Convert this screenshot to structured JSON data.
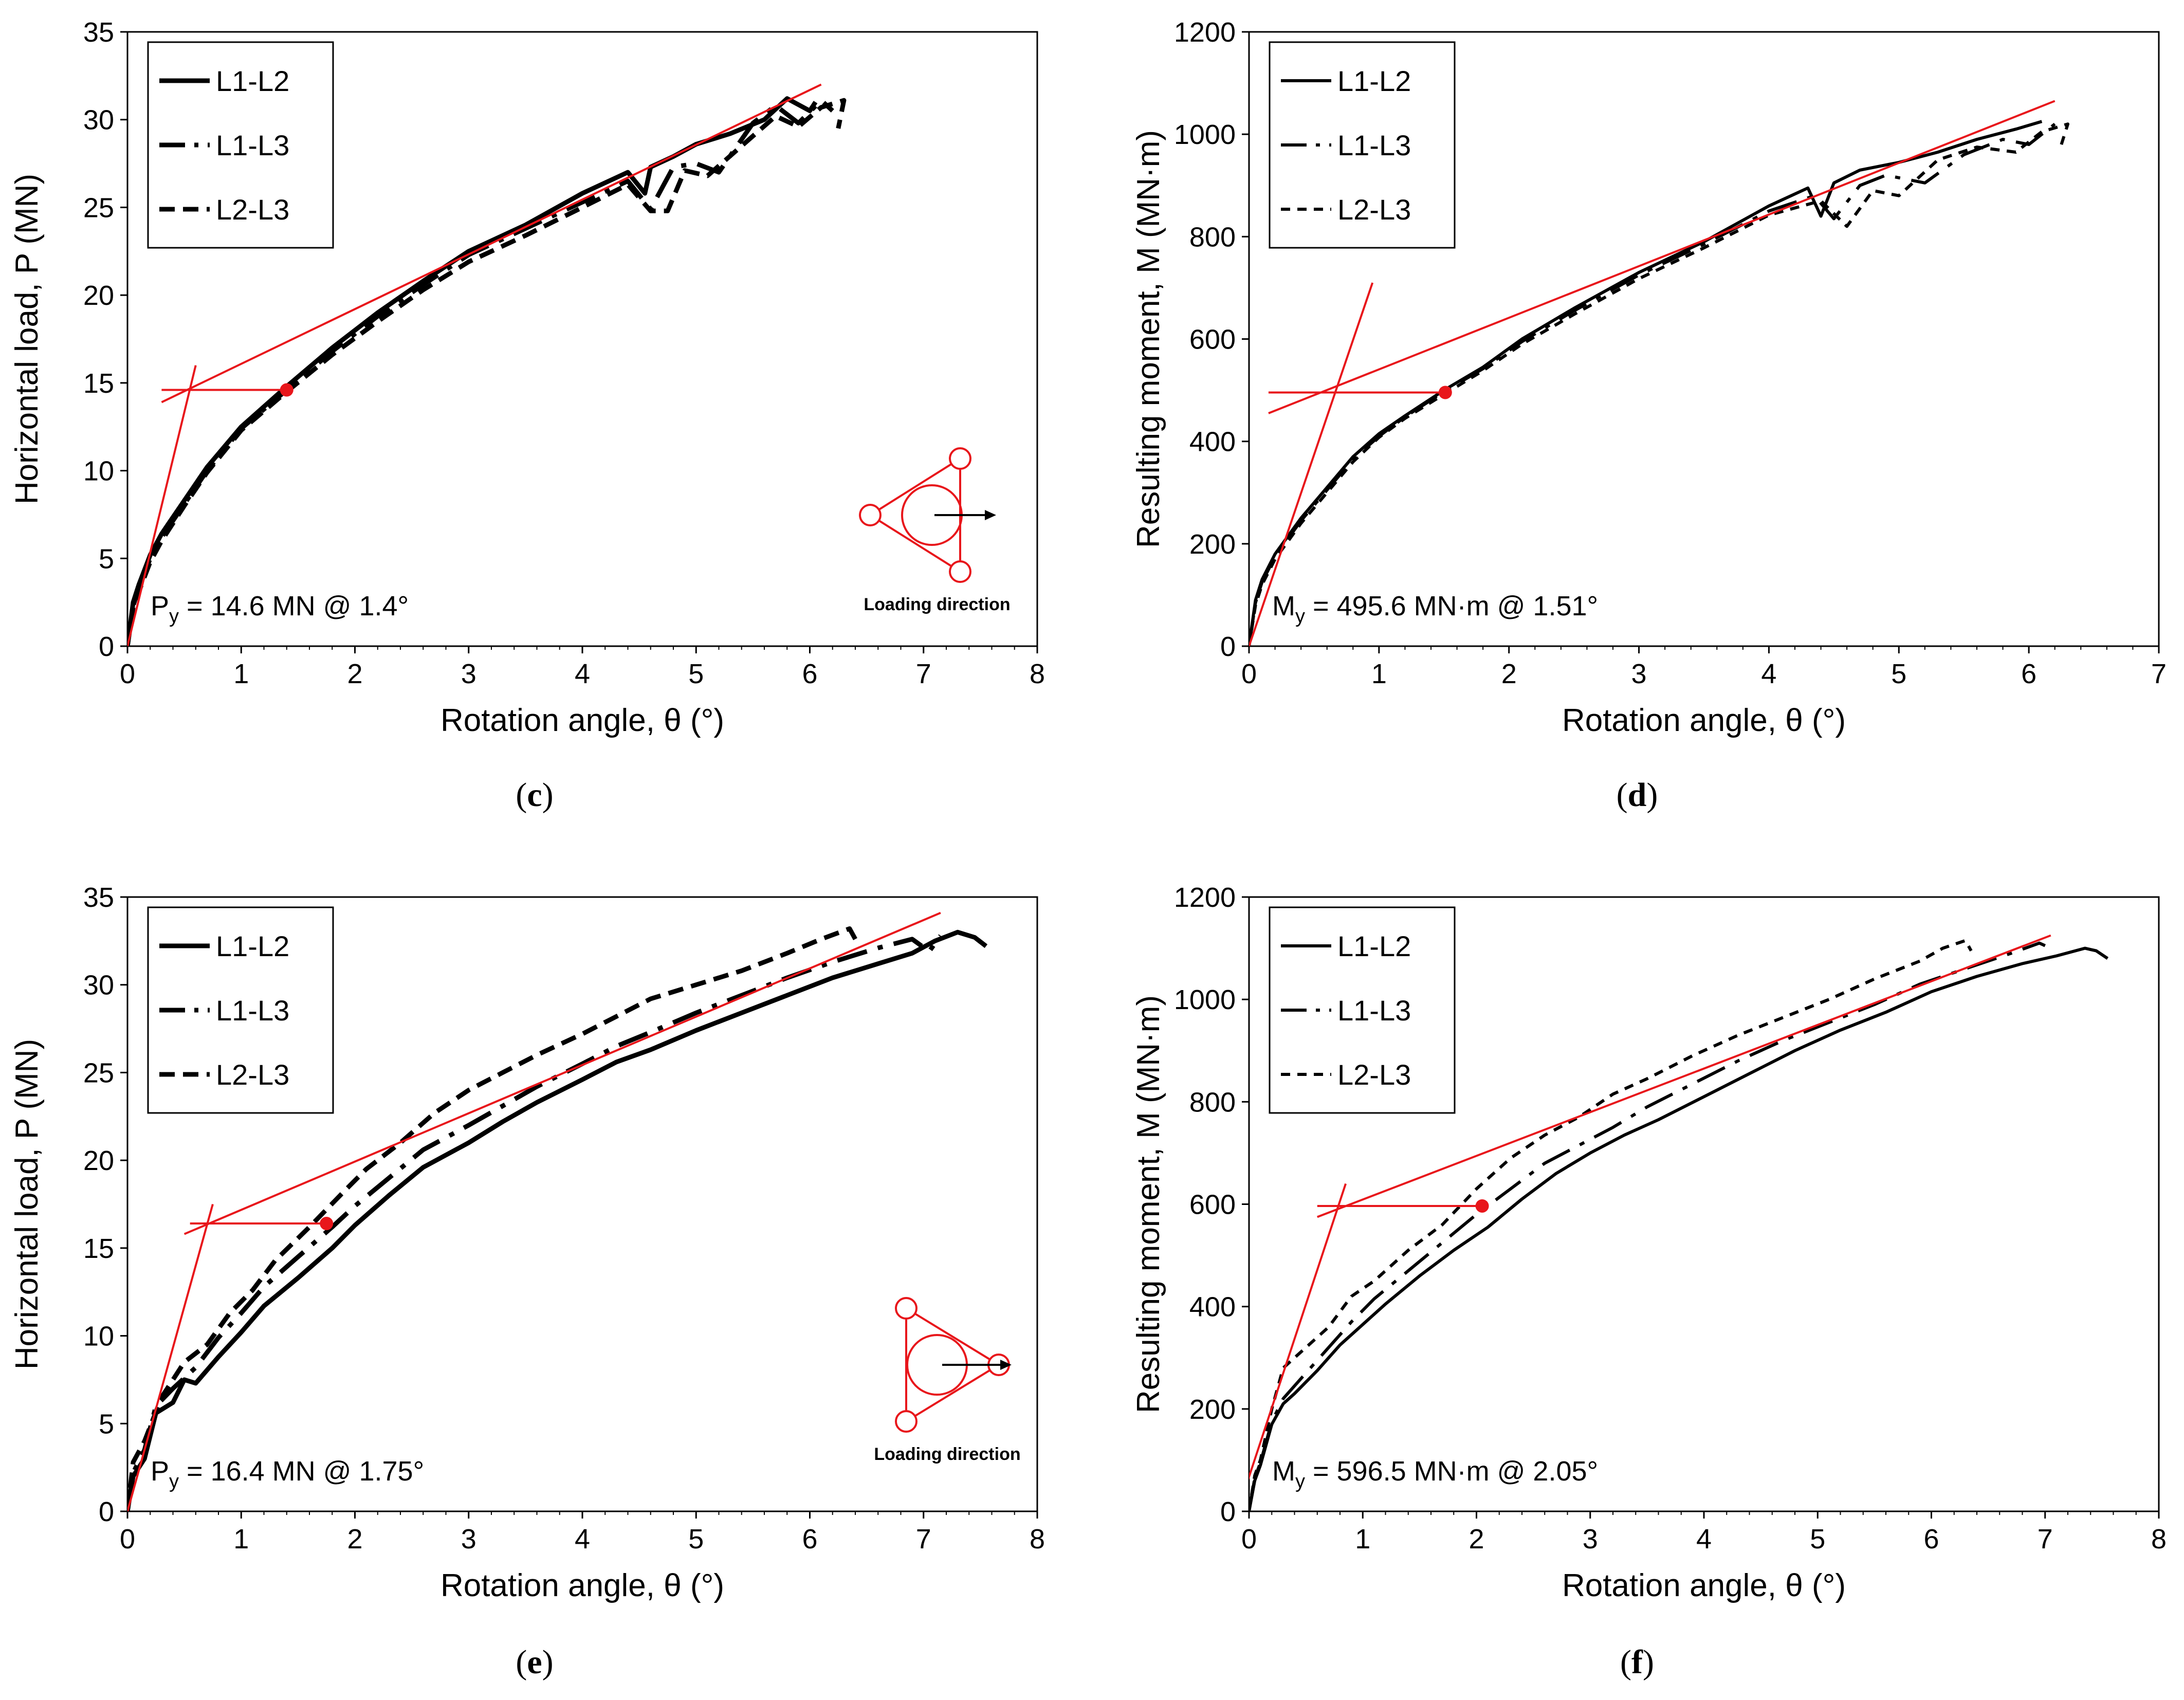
{
  "colors": {
    "series": "#000000",
    "fit": "#e8161b",
    "axis": "#000000"
  },
  "chart_data": [
    {
      "id": "c",
      "type": "line",
      "caption": "c",
      "xlabel": "Rotation angle, θ (°)",
      "ylabel": "Horizontal load, P (MN)",
      "xlim": [
        0,
        8
      ],
      "ylim": [
        0,
        35
      ],
      "xticks": [
        0,
        1,
        2,
        3,
        4,
        5,
        6,
        7,
        8
      ],
      "yticks": [
        0,
        5,
        10,
        15,
        20,
        25,
        30,
        35
      ],
      "legend": {
        "position": "top-left",
        "style": "bold"
      },
      "series": [
        {
          "name": "L1-L2",
          "dash": "solid",
          "x": [
            0,
            0.05,
            0.1,
            0.2,
            0.3,
            0.5,
            0.7,
            1.0,
            1.4,
            1.8,
            2.2,
            2.6,
            3.0,
            3.5,
            4.0,
            4.4,
            4.55,
            4.6,
            4.8,
            5.0,
            5.3,
            5.6,
            5.8,
            6.0,
            6.05
          ],
          "y": [
            0,
            2.5,
            3.5,
            5.2,
            6.4,
            8.3,
            10.2,
            12.5,
            14.8,
            17.0,
            19.0,
            20.8,
            22.5,
            24.0,
            25.8,
            27.0,
            25.8,
            27.3,
            27.9,
            28.6,
            29.2,
            30.0,
            31.2,
            30.5,
            31.0
          ]
        },
        {
          "name": "L1-L3",
          "dash": "dashdot",
          "x": [
            0,
            0.05,
            0.1,
            0.2,
            0.3,
            0.5,
            0.7,
            1.0,
            1.4,
            1.8,
            2.2,
            2.6,
            3.0,
            3.5,
            4.0,
            4.4,
            4.6,
            4.8,
            5.0,
            5.2,
            5.5,
            5.7,
            5.9,
            6.1,
            6.2
          ],
          "y": [
            0,
            2.3,
            3.3,
            5.0,
            6.2,
            8.1,
            10.0,
            12.4,
            14.6,
            16.8,
            18.8,
            20.6,
            22.3,
            23.8,
            25.3,
            26.5,
            24.9,
            27.3,
            27.5,
            27.0,
            29.8,
            30.8,
            29.8,
            31.1,
            30.5
          ]
        },
        {
          "name": "L2-L3",
          "dash": "dashed",
          "x": [
            0,
            0.05,
            0.1,
            0.2,
            0.3,
            0.5,
            0.7,
            1.0,
            1.4,
            1.8,
            2.2,
            2.6,
            3.0,
            3.5,
            4.0,
            4.4,
            4.6,
            4.75,
            4.9,
            5.1,
            5.4,
            5.7,
            5.9,
            6.1,
            6.3,
            6.25
          ],
          "y": [
            0,
            2.2,
            3.1,
            4.8,
            6.0,
            8.0,
            9.9,
            12.3,
            14.5,
            16.6,
            18.5,
            20.3,
            21.9,
            23.4,
            25.0,
            26.3,
            24.8,
            24.8,
            27.1,
            26.8,
            28.5,
            30.2,
            29.6,
            30.7,
            31.1,
            29.5
          ]
        }
      ],
      "fit_lines": [
        {
          "x": [
            0,
            0.6
          ],
          "y": [
            0,
            16.0
          ]
        },
        {
          "x": [
            0.3,
            6.1
          ],
          "y": [
            13.9,
            32.0
          ]
        },
        {
          "x": [
            0.3,
            1.4
          ],
          "y": [
            14.6,
            14.6
          ]
        }
      ],
      "yield_point": {
        "x": 1.4,
        "y": 14.6
      },
      "annotation": {
        "var": "P",
        "sub": "y",
        "text": " = 14.6 MN @ 1.4°"
      },
      "inset": {
        "label": "Loading direction",
        "orientation": "vertex-up"
      }
    },
    {
      "id": "d",
      "type": "line",
      "caption": "d",
      "xlabel": "Rotation angle, θ (°)",
      "ylabel": "Resulting moment, M (MN·m)",
      "xlim": [
        0,
        7
      ],
      "ylim": [
        0,
        1200
      ],
      "xticks": [
        0,
        1,
        2,
        3,
        4,
        5,
        6,
        7
      ],
      "yticks": [
        0,
        200,
        400,
        600,
        800,
        1000,
        1200
      ],
      "legend": {
        "position": "top-left",
        "style": "thin"
      },
      "series": [
        {
          "name": "L1-L2",
          "dash": "solid",
          "x": [
            0,
            0.05,
            0.1,
            0.2,
            0.4,
            0.6,
            0.8,
            1.0,
            1.2,
            1.5,
            1.8,
            2.1,
            2.5,
            3.0,
            3.5,
            4.0,
            4.3,
            4.4,
            4.5,
            4.7,
            5.0,
            5.3,
            5.6,
            5.9,
            6.1
          ],
          "y": [
            0,
            90,
            130,
            180,
            250,
            310,
            370,
            415,
            450,
            500,
            545,
            600,
            660,
            730,
            790,
            860,
            895,
            840,
            905,
            930,
            945,
            965,
            990,
            1010,
            1025
          ]
        },
        {
          "name": "L1-L3",
          "dash": "dashdot",
          "x": [
            0,
            0.05,
            0.1,
            0.2,
            0.4,
            0.6,
            0.8,
            1.0,
            1.2,
            1.5,
            1.8,
            2.1,
            2.5,
            3.0,
            3.5,
            4.0,
            4.35,
            4.5,
            4.7,
            4.9,
            5.2,
            5.5,
            5.8,
            6.0,
            6.2
          ],
          "y": [
            0,
            85,
            125,
            175,
            245,
            305,
            365,
            410,
            448,
            497,
            542,
            595,
            655,
            725,
            785,
            850,
            880,
            835,
            900,
            920,
            905,
            960,
            990,
            980,
            1020
          ]
        },
        {
          "name": "L2-L3",
          "dash": "dashed",
          "x": [
            0,
            0.05,
            0.1,
            0.2,
            0.4,
            0.6,
            0.8,
            1.0,
            1.2,
            1.5,
            1.8,
            2.1,
            2.5,
            3.0,
            3.5,
            4.0,
            4.4,
            4.6,
            4.8,
            5.0,
            5.3,
            5.6,
            5.9,
            6.1,
            6.3,
            6.25
          ],
          "y": [
            0,
            80,
            120,
            170,
            240,
            300,
            360,
            408,
            445,
            492,
            538,
            590,
            648,
            718,
            778,
            842,
            870,
            820,
            890,
            880,
            950,
            975,
            965,
            1005,
            1020,
            980
          ]
        }
      ],
      "fit_lines": [
        {
          "x": [
            0,
            0.95
          ],
          "y": [
            0,
            710
          ]
        },
        {
          "x": [
            0.15,
            6.2
          ],
          "y": [
            455,
            1065
          ]
        },
        {
          "x": [
            0.15,
            1.51
          ],
          "y": [
            495.6,
            495.6
          ]
        }
      ],
      "yield_point": {
        "x": 1.51,
        "y": 495.6
      },
      "annotation": {
        "var": "M",
        "sub": "y",
        "text": " = 495.6 MN·m @ 1.51°"
      }
    },
    {
      "id": "e",
      "type": "line",
      "caption": "e",
      "xlabel": "Rotation angle, θ (°)",
      "ylabel": "Horizontal load, P (MN)",
      "xlim": [
        0,
        8
      ],
      "ylim": [
        0,
        35
      ],
      "xticks": [
        0,
        1,
        2,
        3,
        4,
        5,
        6,
        7,
        8
      ],
      "yticks": [
        0,
        5,
        10,
        15,
        20,
        25,
        30,
        35
      ],
      "legend": {
        "position": "top-left",
        "style": "bold"
      },
      "series": [
        {
          "name": "L1-L2",
          "dash": "solid",
          "x": [
            0,
            0.05,
            0.15,
            0.25,
            0.4,
            0.5,
            0.6,
            0.8,
            1.0,
            1.2,
            1.5,
            1.8,
            2.0,
            2.3,
            2.6,
            3.0,
            3.3,
            3.6,
            4.0,
            4.3,
            4.6,
            5.0,
            5.4,
            5.8,
            6.2,
            6.6,
            6.9,
            7.1,
            7.3,
            7.45,
            7.55
          ],
          "y": [
            0,
            2.0,
            3.0,
            5.6,
            6.2,
            7.5,
            7.3,
            8.8,
            10.2,
            11.7,
            13.3,
            15.0,
            16.3,
            18.0,
            19.6,
            21.0,
            22.2,
            23.3,
            24.6,
            25.6,
            26.3,
            27.4,
            28.4,
            29.4,
            30.4,
            31.2,
            31.8,
            32.5,
            33.0,
            32.7,
            32.2
          ]
        },
        {
          "name": "L1-L3",
          "dash": "dashdot",
          "x": [
            0,
            0.05,
            0.15,
            0.25,
            0.4,
            0.6,
            0.8,
            1.0,
            1.2,
            1.5,
            1.8,
            2.0,
            2.3,
            2.6,
            3.0,
            3.3,
            3.6,
            4.0,
            4.3,
            4.6,
            5.0,
            5.4,
            5.8,
            6.2,
            6.6,
            6.9,
            7.05,
            7.15
          ],
          "y": [
            0,
            2.2,
            3.5,
            6.0,
            7.0,
            8.2,
            9.9,
            11.3,
            12.8,
            14.5,
            16.2,
            17.4,
            19.0,
            20.6,
            22.0,
            23.1,
            24.2,
            25.5,
            26.5,
            27.3,
            28.4,
            29.4,
            30.4,
            31.3,
            32.1,
            32.6,
            31.9,
            32.8
          ]
        },
        {
          "name": "L2-L3",
          "dash": "dashed",
          "x": [
            0,
            0.05,
            0.15,
            0.3,
            0.5,
            0.7,
            0.9,
            1.1,
            1.3,
            1.6,
            1.9,
            2.1,
            2.4,
            2.7,
            3.0,
            3.3,
            3.6,
            4.0,
            4.3,
            4.6,
            5.0,
            5.4,
            5.8,
            6.1,
            6.35,
            6.4
          ],
          "y": [
            0,
            2.8,
            4.0,
            6.5,
            8.5,
            9.5,
            11.3,
            12.6,
            14.3,
            16.2,
            18.2,
            19.5,
            21.0,
            22.7,
            24.0,
            25.0,
            26.0,
            27.2,
            28.2,
            29.2,
            30.0,
            30.8,
            31.8,
            32.6,
            33.2,
            32.6
          ]
        }
      ],
      "fit_lines": [
        {
          "x": [
            0,
            0.75
          ],
          "y": [
            0,
            17.5
          ]
        },
        {
          "x": [
            0.5,
            7.15
          ],
          "y": [
            15.8,
            34.1
          ]
        },
        {
          "x": [
            0.55,
            1.75
          ],
          "y": [
            16.4,
            16.4
          ]
        }
      ],
      "yield_point": {
        "x": 1.75,
        "y": 16.4
      },
      "annotation": {
        "var": "P",
        "sub": "y",
        "text": " = 16.4 MN @ 1.75°"
      },
      "inset": {
        "label": "Loading direction",
        "orientation": "vertex-right"
      }
    },
    {
      "id": "f",
      "type": "line",
      "caption": "f",
      "xlabel": "Rotation angle, θ (°)",
      "ylabel": "Resulting moment, M (MN·m)",
      "xlim": [
        0,
        8
      ],
      "ylim": [
        0,
        1200
      ],
      "xticks": [
        0,
        1,
        2,
        3,
        4,
        5,
        6,
        7,
        8
      ],
      "yticks": [
        0,
        200,
        400,
        600,
        800,
        1000,
        1200
      ],
      "legend": {
        "position": "top-left",
        "style": "thin"
      },
      "series": [
        {
          "name": "L1-L2",
          "dash": "solid",
          "x": [
            0,
            0.05,
            0.1,
            0.2,
            0.3,
            0.4,
            0.6,
            0.8,
            1.0,
            1.2,
            1.5,
            1.8,
            2.1,
            2.4,
            2.7,
            3.0,
            3.3,
            3.6,
            4.0,
            4.4,
            4.8,
            5.2,
            5.6,
            6.0,
            6.4,
            6.8,
            7.1,
            7.35,
            7.45,
            7.55
          ],
          "y": [
            0,
            60,
            90,
            170,
            210,
            230,
            275,
            325,
            365,
            405,
            460,
            510,
            555,
            610,
            660,
            700,
            735,
            765,
            810,
            855,
            900,
            940,
            975,
            1015,
            1045,
            1070,
            1085,
            1100,
            1095,
            1080
          ]
        },
        {
          "name": "L1-L3",
          "dash": "dashdot",
          "x": [
            0,
            0.05,
            0.1,
            0.2,
            0.3,
            0.5,
            0.7,
            0.9,
            1.1,
            1.4,
            1.7,
            2.0,
            2.3,
            2.6,
            2.9,
            3.2,
            3.5,
            3.9,
            4.3,
            4.7,
            5.1,
            5.5,
            5.9,
            6.3,
            6.7,
            6.95,
            7.0
          ],
          "y": [
            0,
            65,
            95,
            175,
            220,
            270,
            320,
            370,
            415,
            470,
            525,
            580,
            630,
            680,
            715,
            750,
            790,
            835,
            880,
            920,
            955,
            990,
            1030,
            1060,
            1090,
            1110,
            1105
          ]
        },
        {
          "name": "L2-L3",
          "dash": "dashed",
          "x": [
            0,
            0.05,
            0.1,
            0.2,
            0.3,
            0.5,
            0.7,
            0.9,
            1.1,
            1.4,
            1.7,
            2.0,
            2.3,
            2.6,
            2.9,
            3.2,
            3.5,
            3.9,
            4.3,
            4.7,
            5.1,
            5.5,
            5.9,
            6.1,
            6.3,
            6.35
          ],
          "y": [
            0,
            70,
            100,
            200,
            280,
            320,
            360,
            420,
            450,
            510,
            560,
            630,
            690,
            735,
            770,
            815,
            845,
            890,
            930,
            965,
            1000,
            1040,
            1075,
            1100,
            1115,
            1095
          ]
        }
      ],
      "fit_lines": [
        {
          "x": [
            -0.1,
            0.85
          ],
          "y": [
            0,
            640
          ]
        },
        {
          "x": [
            0.6,
            7.05
          ],
          "y": [
            575,
            1125
          ]
        },
        {
          "x": [
            0.6,
            2.05
          ],
          "y": [
            596.5,
            596.5
          ]
        }
      ],
      "yield_point": {
        "x": 2.05,
        "y": 596.5
      },
      "annotation": {
        "var": "M",
        "sub": "y",
        "text": " = 596.5 MN·m @ 2.05°"
      }
    }
  ]
}
